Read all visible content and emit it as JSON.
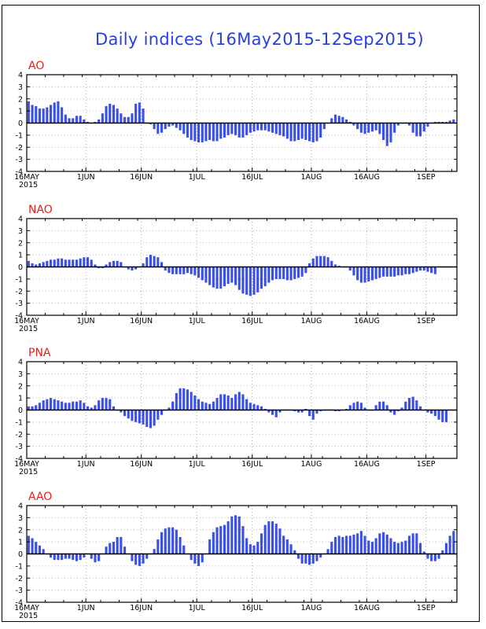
{
  "title": "Daily indices (16May2015-12Sep2015)",
  "colors": {
    "bars": "#3a50e8",
    "panel_label": "#e02020",
    "grid": "#999999",
    "axis": "#000000"
  },
  "chart_data": [
    {
      "type": "bar",
      "label": "AO",
      "title": "AO",
      "xlabel_ticks": [
        "16MAY",
        "1JUN",
        "16JUN",
        "1JUL",
        "16JUL",
        "1AUG",
        "16AUG",
        "1SEP"
      ],
      "year_label": "2015",
      "tick_days": [
        0,
        16,
        31,
        46,
        61,
        77,
        92,
        108
      ],
      "ylim": [
        -4,
        4
      ],
      "yticks": [
        "4",
        "3",
        "2",
        "1",
        "0",
        "-1",
        "-2",
        "-3",
        "-4"
      ],
      "values": [
        1.8,
        1.5,
        1.4,
        1.2,
        1.2,
        1.3,
        1.5,
        1.7,
        1.8,
        1.3,
        0.7,
        0.4,
        0.4,
        0.6,
        0.6,
        0.3,
        0.1,
        0.0,
        0.1,
        0.3,
        0.8,
        1.4,
        1.6,
        1.5,
        1.2,
        0.8,
        0.5,
        0.5,
        0.8,
        1.6,
        1.7,
        1.2,
        0.0,
        -0.1,
        -0.5,
        -0.9,
        -0.8,
        -0.5,
        -0.3,
        -0.2,
        -0.4,
        -0.6,
        -0.9,
        -1.2,
        -1.4,
        -1.5,
        -1.6,
        -1.6,
        -1.5,
        -1.4,
        -1.5,
        -1.5,
        -1.3,
        -1.2,
        -1.0,
        -0.9,
        -1.0,
        -1.2,
        -1.2,
        -1.0,
        -0.8,
        -0.7,
        -0.6,
        -0.6,
        -0.6,
        -0.7,
        -0.8,
        -0.9,
        -1.0,
        -1.1,
        -1.3,
        -1.5,
        -1.5,
        -1.4,
        -1.3,
        -1.4,
        -1.5,
        -1.6,
        -1.5,
        -1.2,
        -0.5,
        0.0,
        0.4,
        0.7,
        0.6,
        0.5,
        0.3,
        0.1,
        -0.2,
        -0.5,
        -0.8,
        -0.9,
        -0.8,
        -0.7,
        -0.6,
        -0.9,
        -1.4,
        -1.9,
        -1.6,
        -0.8,
        -0.2,
        0.0,
        0.0,
        -0.2,
        -0.8,
        -1.1,
        -1.1,
        -0.7,
        -0.3,
        0.0,
        0.1,
        0.1,
        0.1,
        0.1,
        0.2,
        0.3
      ]
    },
    {
      "type": "bar",
      "label": "NAO",
      "title": "NAO",
      "xlabel_ticks": [
        "16MAY",
        "1JUN",
        "16JUN",
        "1JUL",
        "16JUL",
        "1AUG",
        "16AUG",
        "1SEP"
      ],
      "year_label": "2015",
      "tick_days": [
        0,
        16,
        31,
        46,
        61,
        77,
        92,
        108
      ],
      "ylim": [
        -4,
        4
      ],
      "yticks": [
        "4",
        "3",
        "2",
        "1",
        "0",
        "-1",
        "-2",
        "-3",
        "-4"
      ],
      "values": [
        0.5,
        0.3,
        0.2,
        0.3,
        0.4,
        0.5,
        0.6,
        0.6,
        0.7,
        0.7,
        0.6,
        0.6,
        0.6,
        0.6,
        0.7,
        0.8,
        0.8,
        0.6,
        0.2,
        -0.1,
        -0.1,
        0.2,
        0.4,
        0.5,
        0.5,
        0.4,
        0.0,
        -0.2,
        -0.3,
        -0.2,
        0.0,
        0.3,
        0.8,
        1.0,
        0.9,
        0.8,
        0.4,
        -0.3,
        -0.5,
        -0.6,
        -0.6,
        -0.6,
        -0.6,
        -0.5,
        -0.6,
        -0.7,
        -0.9,
        -1.1,
        -1.3,
        -1.5,
        -1.7,
        -1.8,
        -1.8,
        -1.6,
        -1.4,
        -1.3,
        -1.5,
        -1.9,
        -2.2,
        -2.3,
        -2.4,
        -2.3,
        -2.1,
        -1.8,
        -1.6,
        -1.3,
        -1.1,
        -1.0,
        -1.0,
        -1.0,
        -1.1,
        -1.1,
        -1.0,
        -0.9,
        -0.8,
        -0.5,
        0.3,
        0.7,
        0.9,
        0.9,
        0.9,
        0.8,
        0.5,
        0.2,
        0.1,
        0.0,
        0.0,
        -0.3,
        -0.7,
        -1.1,
        -1.3,
        -1.3,
        -1.2,
        -1.1,
        -1.0,
        -0.9,
        -0.8,
        -0.8,
        -0.8,
        -0.8,
        -0.7,
        -0.7,
        -0.6,
        -0.6,
        -0.5,
        -0.4,
        -0.3,
        -0.3,
        -0.4,
        -0.5,
        -0.6
      ]
    },
    {
      "type": "bar",
      "label": "PNA",
      "title": "PNA",
      "xlabel_ticks": [
        "16MAY",
        "1JUN",
        "16JUN",
        "1JUL",
        "16JUL",
        "1AUG",
        "16AUG",
        "1SEP"
      ],
      "year_label": "2015",
      "tick_days": [
        0,
        16,
        31,
        46,
        61,
        77,
        92,
        108
      ],
      "ylim": [
        -4,
        4
      ],
      "yticks": [
        "4",
        "3",
        "2",
        "1",
        "0",
        "-1",
        "-2",
        "-3",
        "-4"
      ],
      "values": [
        0.3,
        0.3,
        0.4,
        0.6,
        0.8,
        0.9,
        1.0,
        0.9,
        0.8,
        0.7,
        0.6,
        0.6,
        0.7,
        0.7,
        0.8,
        0.6,
        0.3,
        0.2,
        0.4,
        0.8,
        1.0,
        1.0,
        0.9,
        0.3,
        0.0,
        -0.2,
        -0.5,
        -0.7,
        -0.9,
        -1.0,
        -1.1,
        -1.2,
        -1.4,
        -1.5,
        -1.3,
        -0.8,
        -0.4,
        0.0,
        0.2,
        0.7,
        1.4,
        1.8,
        1.8,
        1.7,
        1.5,
        1.2,
        0.9,
        0.7,
        0.6,
        0.5,
        0.7,
        1.0,
        1.3,
        1.3,
        1.2,
        1.0,
        1.3,
        1.5,
        1.3,
        0.9,
        0.6,
        0.5,
        0.4,
        0.3,
        0.1,
        -0.2,
        -0.4,
        -0.6,
        -0.2,
        0.0,
        0.0,
        0.0,
        -0.1,
        -0.2,
        -0.2,
        0.1,
        -0.5,
        -0.8,
        -0.3,
        -0.1,
        0.0,
        0.0,
        0.0,
        -0.1,
        -0.1,
        0.0,
        0.1,
        0.4,
        0.6,
        0.7,
        0.6,
        0.2,
        0.0,
        0.0,
        0.4,
        0.7,
        0.7,
        0.4,
        -0.2,
        -0.4,
        -0.1,
        0.2,
        0.7,
        1.0,
        1.1,
        0.8,
        0.3,
        0.0,
        -0.2,
        -0.3,
        -0.5,
        -0.8,
        -1.0,
        -1.0
      ]
    },
    {
      "type": "bar",
      "label": "AAO",
      "title": "AAO",
      "xlabel_ticks": [
        "16MAY",
        "1JUN",
        "16JUN",
        "1JUL",
        "16JUL",
        "1AUG",
        "16AUG",
        "1SEP"
      ],
      "year_label": "2015",
      "tick_days": [
        0,
        16,
        31,
        46,
        61,
        77,
        92,
        108
      ],
      "ylim": [
        -4,
        4
      ],
      "yticks": [
        "4",
        "3",
        "2",
        "1",
        "0",
        "-1",
        "-2",
        "-3",
        "-4"
      ],
      "values": [
        1.5,
        1.3,
        1.0,
        0.7,
        0.4,
        0.0,
        -0.3,
        -0.5,
        -0.5,
        -0.5,
        -0.4,
        -0.4,
        -0.5,
        -0.6,
        -0.5,
        -0.3,
        0.0,
        -0.4,
        -0.7,
        -0.6,
        0.0,
        0.6,
        0.9,
        1.0,
        1.4,
        1.4,
        0.6,
        0.0,
        -0.6,
        -0.9,
        -1.0,
        -0.8,
        -0.4,
        0.0,
        0.4,
        1.2,
        1.8,
        2.1,
        2.2,
        2.2,
        2.0,
        1.4,
        0.7,
        0.0,
        -0.5,
        -0.8,
        -1.0,
        -0.7,
        0.0,
        1.2,
        1.8,
        2.2,
        2.3,
        2.4,
        2.7,
        3.1,
        3.2,
        3.1,
        2.3,
        1.3,
        0.8,
        0.7,
        1.0,
        1.7,
        2.4,
        2.7,
        2.7,
        2.5,
        2.1,
        1.5,
        1.2,
        0.8,
        0.3,
        -0.4,
        -0.8,
        -0.8,
        -0.9,
        -0.8,
        -0.6,
        -0.3,
        0.0,
        0.4,
        1.0,
        1.4,
        1.5,
        1.4,
        1.5,
        1.5,
        1.6,
        1.7,
        1.9,
        1.5,
        1.1,
        1.0,
        1.3,
        1.7,
        1.8,
        1.6,
        1.3,
        1.0,
        0.9,
        1.0,
        1.1,
        1.5,
        1.7,
        1.7,
        0.9,
        0.2,
        -0.4,
        -0.6,
        -0.6,
        -0.4,
        0.3,
        0.9,
        1.5,
        1.9
      ]
    }
  ]
}
